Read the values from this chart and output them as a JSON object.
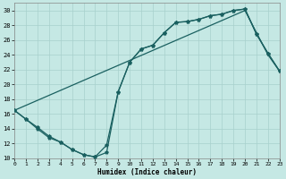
{
  "xlabel": "Humidex (Indice chaleur)",
  "bg_color": "#c5e8e4",
  "grid_color": "#a8d0cc",
  "line_color": "#1a6060",
  "xlim": [
    0,
    23
  ],
  "ylim": [
    10,
    31
  ],
  "xticks": [
    0,
    1,
    2,
    3,
    4,
    5,
    6,
    7,
    8,
    9,
    10,
    11,
    12,
    13,
    14,
    15,
    16,
    17,
    18,
    19,
    20,
    21,
    22,
    23
  ],
  "yticks": [
    10,
    12,
    14,
    16,
    18,
    20,
    22,
    24,
    26,
    28,
    30
  ],
  "line1_x": [
    0,
    20,
    21,
    22,
    23
  ],
  "line1_y": [
    16.5,
    30.0,
    27.0,
    24.0,
    21.8
  ],
  "line2_x": [
    0,
    1,
    2,
    3,
    4,
    5,
    6,
    7,
    8,
    9,
    10,
    11,
    12,
    13,
    14,
    15,
    16,
    17,
    18,
    19,
    20,
    21,
    22,
    23
  ],
  "line2_y": [
    16.5,
    15.3,
    14.2,
    13.0,
    12.2,
    11.2,
    10.5,
    10.2,
    11.8,
    19.0,
    23.0,
    24.8,
    25.3,
    27.0,
    28.4,
    28.5,
    28.8,
    29.3,
    29.5,
    30.0,
    30.2,
    26.8,
    24.2,
    21.8
  ],
  "line3_x": [
    0,
    1,
    2,
    3,
    4,
    5,
    6,
    7,
    8,
    9,
    10,
    11,
    12,
    13,
    14,
    15,
    16,
    17,
    18,
    19,
    20,
    21,
    22,
    23
  ],
  "line3_y": [
    16.5,
    15.3,
    14.0,
    12.8,
    12.2,
    11.2,
    10.5,
    10.2,
    10.8,
    19.0,
    23.0,
    24.8,
    25.3,
    27.0,
    28.4,
    28.5,
    28.8,
    29.3,
    29.5,
    30.0,
    30.2,
    26.8,
    24.2,
    21.8
  ]
}
